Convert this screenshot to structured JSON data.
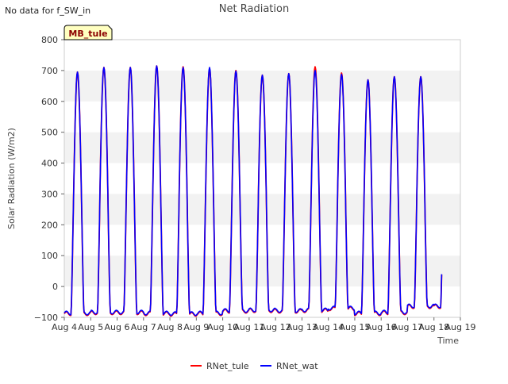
{
  "note": "No data for f_SW_in",
  "badge": "MB_tule",
  "chart_data": {
    "type": "line",
    "title": "Net Radiation",
    "xlabel": "Time",
    "ylabel": "Solar Radiation (W/m2)",
    "ylim": [
      -100,
      800
    ],
    "xlim": [
      4,
      19
    ],
    "yticks": [
      -100,
      0,
      100,
      200,
      300,
      400,
      500,
      600,
      700,
      800
    ],
    "ytick_labels": [
      "−100",
      "0",
      "100",
      "200",
      "300",
      "400",
      "500",
      "600",
      "700",
      "800"
    ],
    "xticks": [
      4,
      5,
      6,
      7,
      8,
      9,
      10,
      11,
      12,
      13,
      14,
      15,
      16,
      17,
      18,
      19
    ],
    "xtick_labels": [
      "Aug 4",
      "Aug 5",
      "Aug 6",
      "Aug 7",
      "Aug 8",
      "Aug 9",
      "Aug 10",
      "Aug 11",
      "Aug 12",
      "Aug 13",
      "Aug 14",
      "Aug 15",
      "Aug 16",
      "Aug 17",
      "Aug 18",
      "Aug 19"
    ],
    "grid": "horizontal bands",
    "legend_position": "bottom-center",
    "day_peaks": {
      "days": [
        4,
        5,
        6,
        7,
        8,
        9,
        10,
        11,
        12,
        13,
        14,
        15,
        16,
        17
      ],
      "RNet_tule": [
        695,
        710,
        710,
        715,
        712,
        705,
        700,
        685,
        690,
        712,
        692,
        670,
        680,
        680
      ],
      "RNet_wat": [
        695,
        710,
        710,
        715,
        710,
        710,
        698,
        685,
        690,
        700,
        688,
        670,
        680,
        680
      ],
      "night_level": [
        -88,
        -85,
        -85,
        -88,
        -90,
        -88,
        -80,
        -78,
        -80,
        -78,
        -72,
        -88,
        -85,
        -65
      ]
    },
    "series": [
      {
        "name": "RNet_tule",
        "color": "#ff0000"
      },
      {
        "name": "RNet_wat",
        "color": "#0000ff"
      }
    ]
  }
}
